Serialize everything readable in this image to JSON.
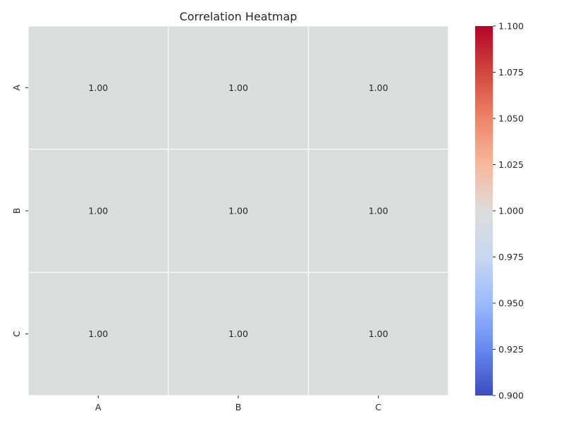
{
  "chart_data": {
    "type": "heatmap",
    "title": "Correlation Heatmap",
    "xlabel": "",
    "ylabel": "",
    "x_categories": [
      "A",
      "B",
      "C"
    ],
    "y_categories": [
      "A",
      "B",
      "C"
    ],
    "values": [
      [
        1.0,
        1.0,
        1.0
      ],
      [
        1.0,
        1.0,
        1.0
      ],
      [
        1.0,
        1.0,
        1.0
      ]
    ],
    "annotations": [
      [
        "1.00",
        "1.00",
        "1.00"
      ],
      [
        "1.00",
        "1.00",
        "1.00"
      ],
      [
        "1.00",
        "1.00",
        "1.00"
      ]
    ],
    "cell_color": "#dcdddd",
    "grid_line_color": "#ffffff",
    "colormap": "coolwarm",
    "colorbar": {
      "range": [
        0.9,
        1.1
      ],
      "ticks": [
        "0.900",
        "0.925",
        "0.950",
        "0.975",
        "1.000",
        "1.025",
        "1.050",
        "1.075",
        "1.100"
      ],
      "stops": [
        "#3b4cc0",
        "#6788ee",
        "#9abbff",
        "#c9d7f0",
        "#dddcdc",
        "#f7b89c",
        "#ee8468",
        "#d0473d",
        "#b40426"
      ]
    }
  }
}
